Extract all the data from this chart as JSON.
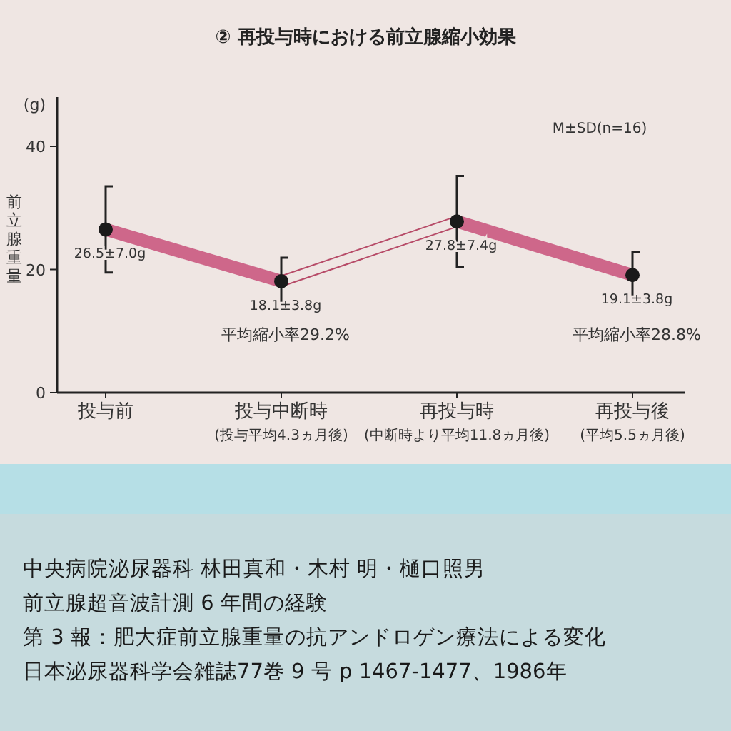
{
  "chart_data": {
    "type": "line",
    "title": "② 再投与時における前立腺縮小効果",
    "ylabel": "前立腺重量",
    "categories": [
      "投与前",
      "投与中断時\n(投与平均4.3ヵ月後)",
      "再投与時\n(中断時より平均11.8ヵ月後)",
      "再投与後\n(平均5.5ヵ月後)"
    ],
    "series": [
      {
        "color": "#c8507a",
        "values": [
          26.5,
          18.1,
          null,
          null
        ]
      },
      {
        "color": "#c8507a",
        "values": [
          null,
          null,
          27.8,
          19.1
        ]
      },
      {
        "color": "#b03a5a",
        "values": [
          null,
          18.1,
          27.8,
          null
        ]
      },
      {
        "type": "scatter",
        "color": "#1a1a1a",
        "marker": "circle",
        "values": [
          26.5,
          18.1,
          27.8,
          19.1
        ],
        "errors": [
          7.0,
          3.8,
          7.4,
          3.8
        ],
        "value_labels": [
          "26.5±7.0g",
          "18.1±3.8g",
          "27.8±7.4g",
          "19.1±3.8g"
        ]
      }
    ],
    "ylim": [
      0,
      48
    ],
    "yticks": [
      0,
      20,
      40
    ],
    "grid": false,
    "annotations": [
      "(g)",
      "M±SD(n=16)",
      "平均縮小率29.2%",
      "平均縮小率28.8%",
      "中央病院泌尿器科 林田真和・木村 明・樋口照男",
      "前立腺超音波計測 6 年間の経験",
      "第 3 報：肥大症前立腺重量の抗アンドロゲン療法による変化",
      "日本泌尿器科学会雑誌77巻 9 号 p 1467-1477、1986年"
    ]
  }
}
